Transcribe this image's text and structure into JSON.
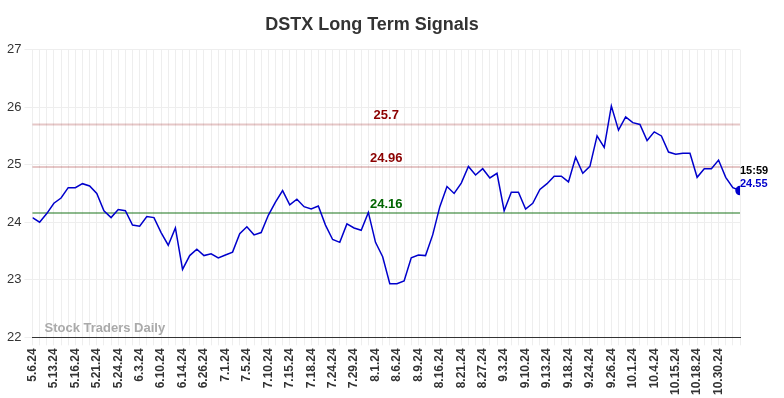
{
  "chart_data": {
    "type": "line",
    "title": "DSTX Long Term Signals",
    "watermark": "Stock Traders Daily",
    "color": "#0000cc",
    "grid": true,
    "ylim": [
      22,
      27
    ],
    "yticks": [
      22,
      23,
      24,
      25,
      26,
      27
    ],
    "categories": [
      "5.6.24",
      null,
      null,
      "5.13.24",
      null,
      null,
      "5.16.24",
      null,
      null,
      "5.21.24",
      null,
      null,
      "5.24.24",
      null,
      null,
      "6.3.24",
      null,
      null,
      "6.10.24",
      null,
      null,
      "6.14.24",
      null,
      null,
      "6.26.24",
      null,
      null,
      "7.1.24",
      null,
      null,
      "7.5.24",
      null,
      null,
      "7.10.24",
      null,
      null,
      "7.15.24",
      null,
      null,
      "7.18.24",
      null,
      null,
      "7.24.24",
      null,
      null,
      "7.29.24",
      null,
      null,
      "8.1.24",
      null,
      null,
      "8.6.24",
      null,
      null,
      "8.9.24",
      null,
      null,
      "8.16.24",
      null,
      null,
      "8.21.24",
      null,
      null,
      "8.27.24",
      null,
      null,
      "9.3.24",
      null,
      null,
      "9.10.24",
      null,
      null,
      "9.13.24",
      null,
      null,
      "9.18.24",
      null,
      null,
      "9.24.24",
      null,
      null,
      "9.26.24",
      null,
      null,
      "10.1.24",
      null,
      null,
      "10.4.24",
      null,
      null,
      "10.15.24",
      null,
      null,
      "10.18.24",
      null,
      null,
      "10.30.24",
      null,
      null,
      null
    ],
    "values": [
      24.08,
      24.0,
      24.15,
      24.33,
      24.42,
      24.6,
      24.6,
      24.67,
      24.63,
      24.5,
      24.2,
      24.08,
      24.22,
      24.2,
      23.95,
      23.93,
      24.1,
      24.08,
      23.82,
      23.6,
      23.9,
      23.18,
      23.42,
      23.53,
      23.42,
      23.45,
      23.38,
      23.43,
      23.48,
      23.8,
      23.92,
      23.78,
      23.82,
      24.12,
      24.35,
      24.55,
      24.3,
      24.4,
      24.27,
      24.23,
      24.28,
      23.95,
      23.7,
      23.65,
      23.97,
      23.9,
      23.86,
      24.17,
      23.65,
      23.4,
      22.93,
      22.93,
      22.98,
      23.38,
      23.43,
      23.42,
      23.78,
      24.27,
      24.62,
      24.5,
      24.68,
      24.97,
      24.82,
      24.93,
      24.77,
      24.85,
      24.2,
      24.52,
      24.52,
      24.23,
      24.33,
      24.57,
      24.67,
      24.8,
      24.8,
      24.7,
      25.13,
      24.85,
      24.97,
      25.5,
      25.3,
      26.02,
      25.6,
      25.83,
      25.73,
      25.7,
      25.42,
      25.57,
      25.5,
      25.22,
      25.18,
      25.2,
      25.2,
      24.78,
      24.93,
      24.93,
      25.08,
      24.78,
      24.6,
      24.55
    ],
    "reference_lines": [
      {
        "value": 25.7,
        "label": "25.7",
        "color": "#8b0000"
      },
      {
        "value": 24.96,
        "label": "24.96",
        "color": "#8b0000"
      },
      {
        "value": 24.16,
        "label": "24.16",
        "color": "#006400"
      }
    ],
    "last_point_label": {
      "time": "15:59",
      "value": 24.55
    }
  }
}
